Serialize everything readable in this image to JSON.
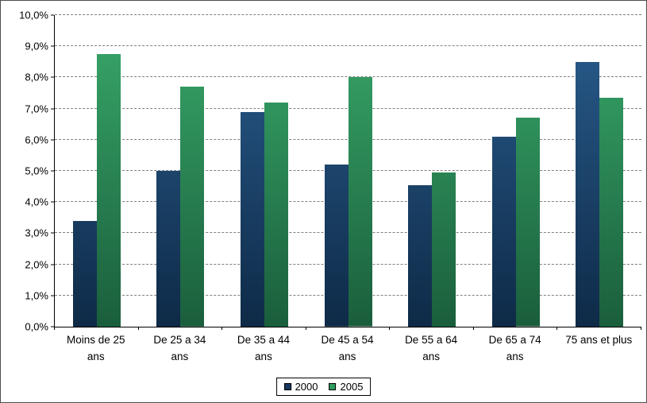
{
  "chart_data": {
    "type": "bar",
    "title": "",
    "xlabel": "",
    "ylabel": "",
    "ylim": [
      0,
      10
    ],
    "grid": true,
    "legend_position": "bottom-center",
    "categories": [
      "Moins de 25 ans",
      "De 25 a 34 ans",
      "De 35 a 44 ans",
      "De 45 a 54 ans",
      "De 55 a 64 ans",
      "De 65 a 74 ans",
      "75 ans et plus"
    ],
    "category_lines": [
      [
        "Moins de 25",
        "ans"
      ],
      [
        "De 25 a 34",
        "ans"
      ],
      [
        "De 35 a 44",
        "ans"
      ],
      [
        "De 45 a 54",
        "ans"
      ],
      [
        "De 55 a 64",
        "ans"
      ],
      [
        "De 65 a 74",
        "ans"
      ],
      [
        "75 ans et plus"
      ]
    ],
    "y_tick_labels": [
      "0,0%",
      "1,0%",
      "2,0%",
      "3,0%",
      "4,0%",
      "5,0%",
      "6,0%",
      "7,0%",
      "8,0%",
      "9,0%",
      "10,0%"
    ],
    "series": [
      {
        "name": "2000",
        "legend_color": "#17375E",
        "color_dark": "#0E2A47",
        "color_light": "#2A5E8F",
        "values": [
          3.4,
          5.0,
          6.9,
          5.2,
          4.55,
          6.1,
          8.5
        ]
      },
      {
        "name": "2005",
        "legend_color": "#2E9B5F",
        "color_dark": "#1A5E3C",
        "color_light": "#39A96A",
        "values": [
          8.75,
          7.7,
          7.2,
          8.0,
          4.95,
          6.7,
          7.35
        ]
      }
    ]
  }
}
